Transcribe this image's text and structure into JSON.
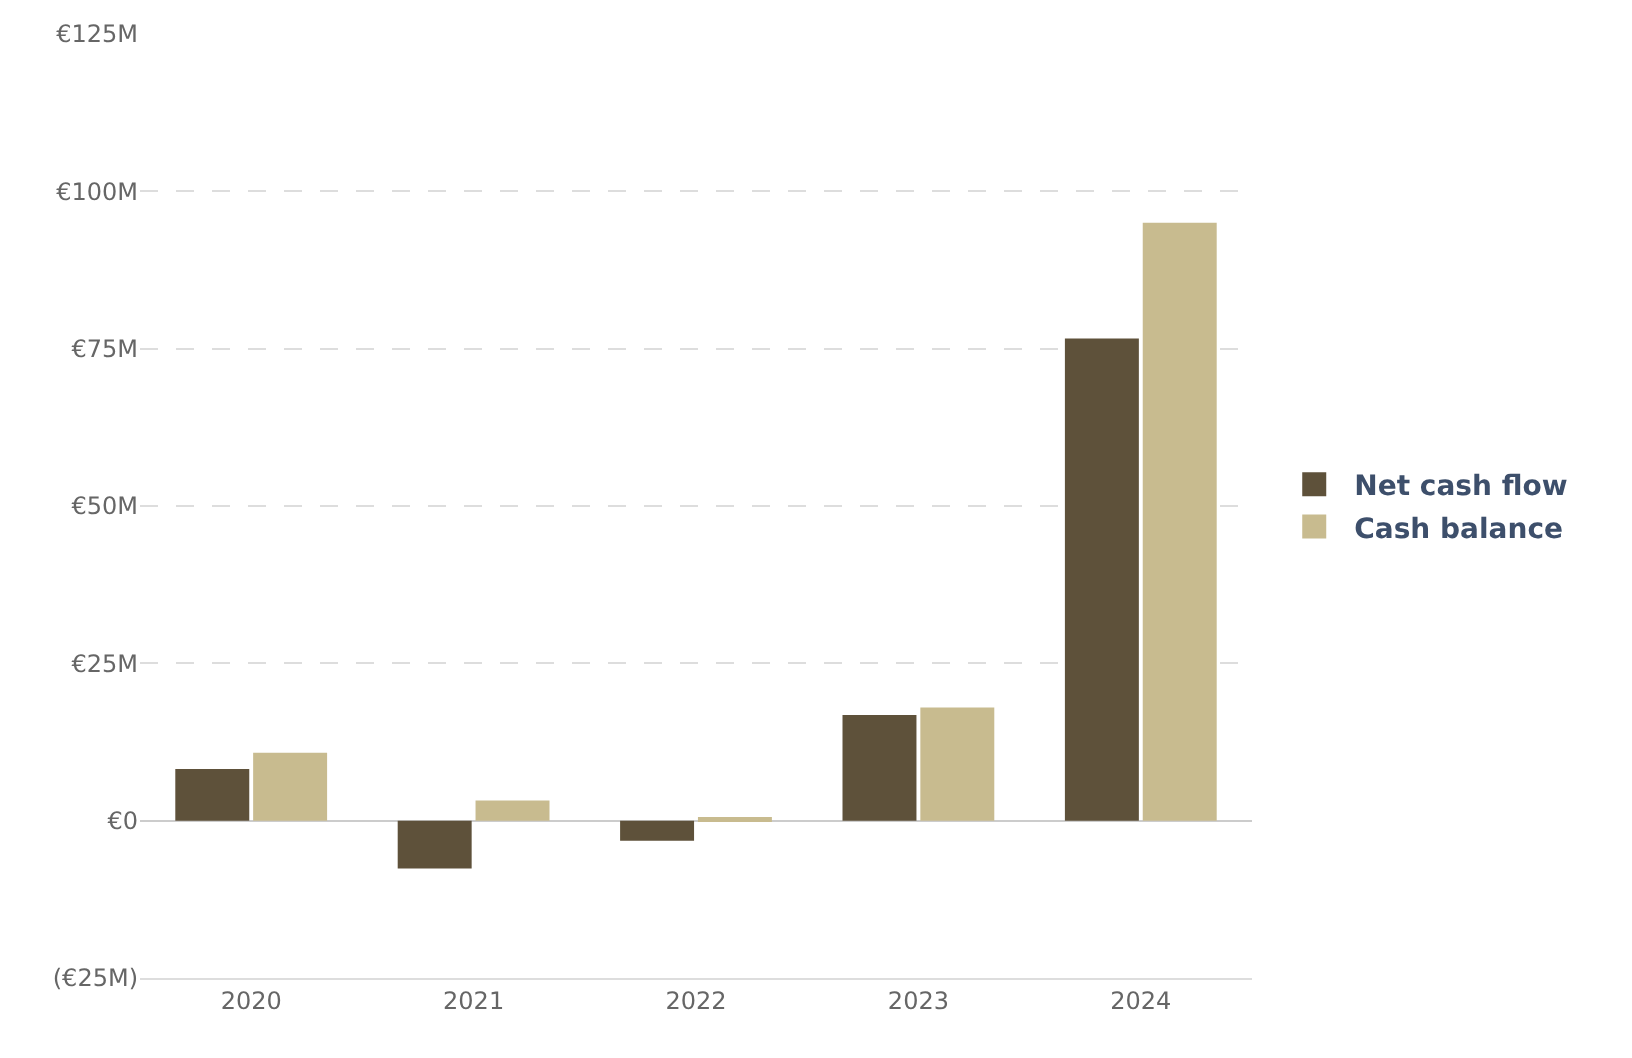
{
  "chart_data": {
    "type": "bar",
    "categories": [
      "2020",
      "2021",
      "2022",
      "2023",
      "2024"
    ],
    "series": [
      {
        "name": "Net cash flow",
        "color": "#5e513a",
        "values": [
          8.2,
          -7.6,
          -3.2,
          16.8,
          76.6
        ]
      },
      {
        "name": "Cash balance",
        "color": "#c8bb8f",
        "values": [
          10.8,
          3.2,
          0.6,
          18,
          95
        ]
      }
    ],
    "ylim": [
      -25,
      125
    ],
    "yticks": [
      {
        "value": -25,
        "label": "(€25M)"
      },
      {
        "value": 0,
        "label": "€0"
      },
      {
        "value": 25,
        "label": "€25M"
      },
      {
        "value": 50,
        "label": "€50M"
      },
      {
        "value": 75,
        "label": "€75M"
      },
      {
        "value": 100,
        "label": "€100M"
      },
      {
        "value": 125,
        "label": "€125M"
      }
    ],
    "grid": "y",
    "legend": "right"
  }
}
